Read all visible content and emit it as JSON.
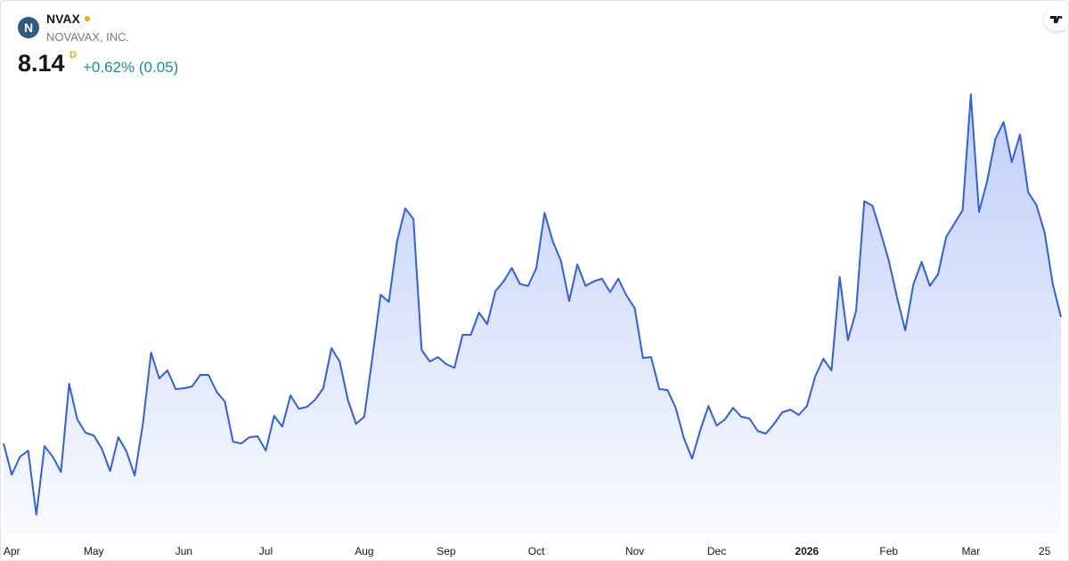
{
  "header": {
    "logo": "N",
    "symbol": "NVAX",
    "name": "NOVAVAX, INC.",
    "price": "8.14",
    "interval": "D",
    "change": "+0.62% (0.05)"
  },
  "chart_data": {
    "type": "area",
    "color": "#2f5fe8",
    "categories": [
      null,
      "Apr",
      null,
      null,
      null,
      null,
      null,
      null,
      null,
      null,
      null,
      "May",
      null,
      null,
      null,
      null,
      null,
      null,
      null,
      null,
      null,
      null,
      "Jun",
      null,
      null,
      null,
      null,
      null,
      null,
      null,
      null,
      null,
      "Jul",
      null,
      null,
      null,
      null,
      null,
      null,
      null,
      null,
      null,
      null,
      null,
      "Aug",
      null,
      null,
      null,
      null,
      null,
      null,
      null,
      null,
      null,
      "Sep",
      null,
      null,
      null,
      null,
      null,
      null,
      null,
      null,
      null,
      null,
      "Oct",
      null,
      null,
      null,
      null,
      null,
      null,
      null,
      null,
      null,
      null,
      null,
      "Nov",
      null,
      null,
      null,
      null,
      null,
      null,
      null,
      null,
      null,
      "Dec",
      null,
      null,
      null,
      null,
      null,
      null,
      null,
      null,
      null,
      null,
      "2026",
      null,
      null,
      null,
      null,
      null,
      null,
      null,
      null,
      null,
      "Feb",
      null,
      null,
      null,
      null,
      null,
      null,
      null,
      null,
      null,
      "Mar",
      null,
      null,
      null,
      null,
      null,
      null,
      null,
      null,
      "25",
      null,
      null
    ],
    "values": [
      6.72,
      6.37,
      6.57,
      6.64,
      5.92,
      6.69,
      6.57,
      6.4,
      7.39,
      6.99,
      6.84,
      6.81,
      6.66,
      6.41,
      6.79,
      6.63,
      6.36,
      6.94,
      7.74,
      7.45,
      7.54,
      7.33,
      7.34,
      7.36,
      7.49,
      7.49,
      7.3,
      7.19,
      6.74,
      6.72,
      6.79,
      6.8,
      6.64,
      7.03,
      6.91,
      7.26,
      7.11,
      7.13,
      7.21,
      7.34,
      7.79,
      7.64,
      7.21,
      6.94,
      7.02,
      7.69,
      8.39,
      8.31,
      8.99,
      9.36,
      9.24,
      7.77,
      7.64,
      7.69,
      7.61,
      7.57,
      7.94,
      7.94,
      8.19,
      8.06,
      8.43,
      8.54,
      8.69,
      8.51,
      8.49,
      8.69,
      9.31,
      8.99,
      8.77,
      8.32,
      8.73,
      8.49,
      8.54,
      8.57,
      8.42,
      8.57,
      8.38,
      8.24,
      7.68,
      7.69,
      7.33,
      7.32,
      7.12,
      6.78,
      6.55,
      6.87,
      7.14,
      6.92,
      6.99,
      7.12,
      7.02,
      7.0,
      6.86,
      6.83,
      6.94,
      7.07,
      7.1,
      7.04,
      7.14,
      7.47,
      7.67,
      7.54,
      8.59,
      7.88,
      8.21,
      9.44,
      9.39,
      9.09,
      8.77,
      8.36,
      7.99,
      8.51,
      8.76,
      8.49,
      8.62,
      9.04,
      9.19,
      9.34,
      10.64,
      9.32,
      9.67,
      10.14,
      10.33,
      9.88,
      10.19,
      9.54,
      9.4,
      9.09,
      8.51,
      8.14
    ]
  }
}
